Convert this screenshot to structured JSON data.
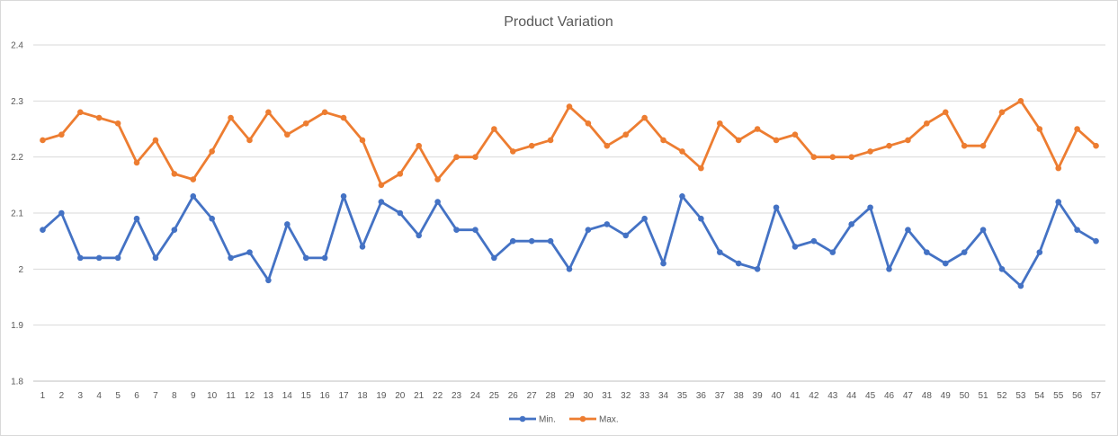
{
  "chart_data": {
    "type": "line",
    "title": "Product Variation",
    "xlabel": "",
    "ylabel": "",
    "ylim": [
      1.8,
      2.4
    ],
    "yticks": [
      "1.8",
      "1.9",
      "2",
      "2.1",
      "2.2",
      "2.3",
      "2.4"
    ],
    "ytick_values": [
      1.8,
      1.9,
      2.0,
      2.1,
      2.2,
      2.3,
      2.4
    ],
    "grid": true,
    "legend_position": "bottom-center",
    "categories": [
      "1",
      "2",
      "3",
      "4",
      "5",
      "6",
      "7",
      "8",
      "9",
      "10",
      "11",
      "12",
      "13",
      "14",
      "15",
      "16",
      "17",
      "18",
      "19",
      "20",
      "21",
      "22",
      "23",
      "24",
      "25",
      "26",
      "27",
      "28",
      "29",
      "30",
      "31",
      "32",
      "33",
      "34",
      "35",
      "36",
      "37",
      "38",
      "39",
      "40",
      "41",
      "42",
      "43",
      "44",
      "45",
      "46",
      "47",
      "48",
      "49",
      "50",
      "51",
      "52",
      "53",
      "54",
      "55",
      "56",
      "57"
    ],
    "series": [
      {
        "name": "Min.",
        "color": "#4472c4",
        "values": [
          2.07,
          2.1,
          2.02,
          2.02,
          2.02,
          2.09,
          2.02,
          2.07,
          2.13,
          2.09,
          2.02,
          2.03,
          1.98,
          2.08,
          2.02,
          2.02,
          2.13,
          2.04,
          2.12,
          2.1,
          2.06,
          2.12,
          2.07,
          2.07,
          2.02,
          2.05,
          2.05,
          2.05,
          2.0,
          2.07,
          2.08,
          2.06,
          2.09,
          2.01,
          2.13,
          2.09,
          2.03,
          2.01,
          2.0,
          2.11,
          2.04,
          2.05,
          2.03,
          2.08,
          2.11,
          2.0,
          2.07,
          2.03,
          2.01,
          2.03,
          2.07,
          2.0,
          1.97,
          2.03,
          2.12,
          2.07,
          2.05
        ]
      },
      {
        "name": "Max.",
        "color": "#ed7d31",
        "values": [
          2.23,
          2.24,
          2.28,
          2.27,
          2.26,
          2.19,
          2.23,
          2.17,
          2.16,
          2.21,
          2.27,
          2.23,
          2.28,
          2.24,
          2.26,
          2.28,
          2.27,
          2.23,
          2.15,
          2.17,
          2.22,
          2.16,
          2.2,
          2.2,
          2.25,
          2.21,
          2.22,
          2.23,
          2.29,
          2.26,
          2.22,
          2.24,
          2.27,
          2.23,
          2.21,
          2.18,
          2.26,
          2.23,
          2.25,
          2.23,
          2.24,
          2.2,
          2.2,
          2.2,
          2.21,
          2.22,
          2.23,
          2.26,
          2.28,
          2.22,
          2.22,
          2.28,
          2.3,
          2.25,
          2.18,
          2.25,
          2.22
        ]
      }
    ]
  }
}
